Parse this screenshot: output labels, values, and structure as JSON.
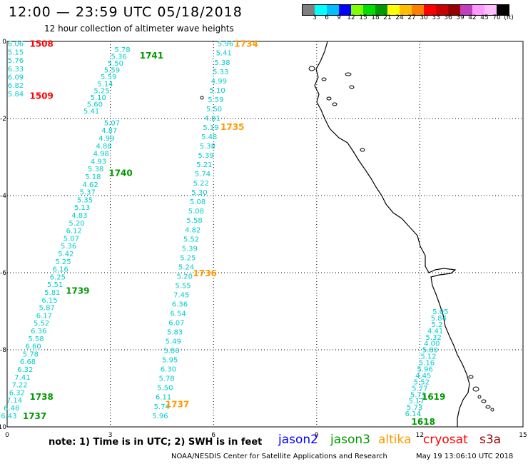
{
  "header": {
    "title": "12:00 — 23:59 UTC 05/18/2018",
    "subtitle": "12 hour collection of altimeter wave heights"
  },
  "legend": {
    "colors": [
      "#7f7f7f",
      "#00ffff",
      "#00bfff",
      "#0000ff",
      "#7fff00",
      "#00dd00",
      "#009900",
      "#ffff00",
      "#ffbf00",
      "#ff7f00",
      "#ff0000",
      "#cc0000",
      "#990000",
      "#bf3fbf",
      "#ff99ff",
      "#ffbfff",
      "#000000"
    ],
    "labels": [
      "3",
      "6",
      "9",
      "12",
      "15",
      "18",
      "21",
      "24",
      "27",
      "30",
      "33",
      "36",
      "39",
      "42",
      "45",
      "70",
      "(ft)"
    ]
  },
  "axes": {
    "x_ticks": [
      "0",
      "3",
      "6",
      "9",
      "12",
      "15"
    ],
    "y_ticks": [
      "0",
      "-2",
      "-4",
      "-6",
      "-8",
      "-10"
    ],
    "x_values": [
      0,
      3,
      6,
      9,
      12,
      15
    ],
    "y_values": [
      0,
      -2,
      -4,
      -6,
      -8,
      -10
    ],
    "x_range": [
      0,
      15
    ],
    "y_range": [
      -10,
      0
    ]
  },
  "tracks": [
    {
      "satellite": "jason3",
      "color": "#00cccc",
      "start": [
        0.25,
        -0.05
      ],
      "end": [
        0.25,
        -1.35
      ],
      "values": [
        "6.06",
        "5.15",
        "5.76",
        "6.33",
        "6.09",
        "6.82",
        "5.84"
      ]
    },
    {
      "satellite": "jason3",
      "color": "#00cccc",
      "start": [
        3.35,
        -0.2
      ],
      "end": [
        2.45,
        -1.8
      ],
      "values": [
        "5.78",
        "5.36",
        "5.50",
        "5.59",
        "5.59",
        "5.14",
        "5.25",
        "5.10",
        "5.60",
        "5.41"
      ]
    },
    {
      "satellite": "jason3",
      "color": "#00cccc",
      "start": [
        3.05,
        -2.1
      ],
      "end": [
        0.05,
        -9.7
      ],
      "values": [
        "5.07",
        "4.87",
        "4.99",
        "4.88",
        "4.98",
        "4.93",
        "5.38",
        "5.18",
        "4.62",
        "5.37",
        "5.35",
        "5.13",
        "4.83",
        "5.20",
        "6.12",
        "5.07",
        "5.36",
        "5.42",
        "5.25",
        "6.16",
        "6.25",
        "5.51",
        "5.81",
        "6.15",
        "5.87",
        "6.17",
        "5.52",
        "6.36",
        "5.58",
        "6.60",
        "5.78",
        "6.68",
        "6.32",
        "7.41",
        "7.22",
        "6.32",
        "7.14",
        "6.48",
        "6.43"
      ]
    },
    {
      "satellite": "altika",
      "color": "#00cccc",
      "start": [
        6.35,
        -0.05
      ],
      "end": [
        4.45,
        -9.7
      ],
      "values": [
        "5.96",
        "5.41",
        "5.38",
        "5.33",
        "4.99",
        "5.10",
        "5.59",
        "5.50",
        "4.81",
        "5.19",
        "5.48",
        "5.38",
        "5.39",
        "5.21",
        "5.74",
        "5.22",
        "5.30",
        "5.08",
        "5.08",
        "5.58",
        "4.82",
        "5.52",
        "5.39",
        "5.25",
        "5.24",
        "5.20",
        "5.55",
        "7.45",
        "6.36",
        "6.54",
        "6.07",
        "5.83",
        "5.49",
        "5.86",
        "5.95",
        "6.30",
        "5.78",
        "5.50",
        "6.11",
        "5.74",
        "5.96"
      ]
    },
    {
      "satellite": "jason3",
      "color": "#00cccc",
      "start": [
        12.6,
        -7.0
      ],
      "end": [
        11.8,
        -9.65
      ],
      "values": [
        "5.05",
        "5.84",
        "5.2",
        "4.41",
        "5.32",
        "4.00",
        "5.80",
        "5.12",
        "5.16",
        "5.96",
        "4.45",
        "5.52",
        "5.77",
        "5.71",
        "5.17",
        "5.73",
        "6.14"
      ]
    }
  ],
  "pass_labels": [
    {
      "text": "1508",
      "color": "#ff0000",
      "x": 1.0,
      "y": -0.05
    },
    {
      "text": "1509",
      "color": "#ff0000",
      "x": 1.0,
      "y": -1.4
    },
    {
      "text": "1741",
      "color": "#009900",
      "x": 4.2,
      "y": -0.35
    },
    {
      "text": "1740",
      "color": "#009900",
      "x": 3.3,
      "y": -3.4
    },
    {
      "text": "1739",
      "color": "#009900",
      "x": 2.05,
      "y": -6.45
    },
    {
      "text": "1738",
      "color": "#009900",
      "x": 1.0,
      "y": -9.2
    },
    {
      "text": "1737",
      "color": "#009900",
      "x": 0.8,
      "y": -9.7
    },
    {
      "text": "1734",
      "color": "#ff9900",
      "x": 6.95,
      "y": -0.05
    },
    {
      "text": "1735",
      "color": "#ff9900",
      "x": 6.55,
      "y": -2.2
    },
    {
      "text": "1736",
      "color": "#ff9900",
      "x": 5.75,
      "y": -6.0
    },
    {
      "text": "1737",
      "color": "#ff9900",
      "x": 4.95,
      "y": -9.4
    },
    {
      "text": "1619",
      "color": "#009900",
      "x": 12.4,
      "y": -9.2
    },
    {
      "text": "1618",
      "color": "#009900",
      "x": 12.1,
      "y": -9.85
    }
  ],
  "footer": {
    "note": "note:  1) Time is in UTC;  2) SWH is in feet",
    "credit": "NOAA/NESDIS Center for Satellite Applications and Research",
    "timestamp": "May 19 13:06:10 UTC 2018",
    "satellites": [
      {
        "name": "jason2",
        "color": "#0000ff"
      },
      {
        "name": "jason3",
        "color": "#009900"
      },
      {
        "name": "altika",
        "color": "#ff9900"
      },
      {
        "name": "cryosat",
        "color": "#ff0000"
      },
      {
        "name": "s3a",
        "color": "#990000"
      }
    ]
  }
}
